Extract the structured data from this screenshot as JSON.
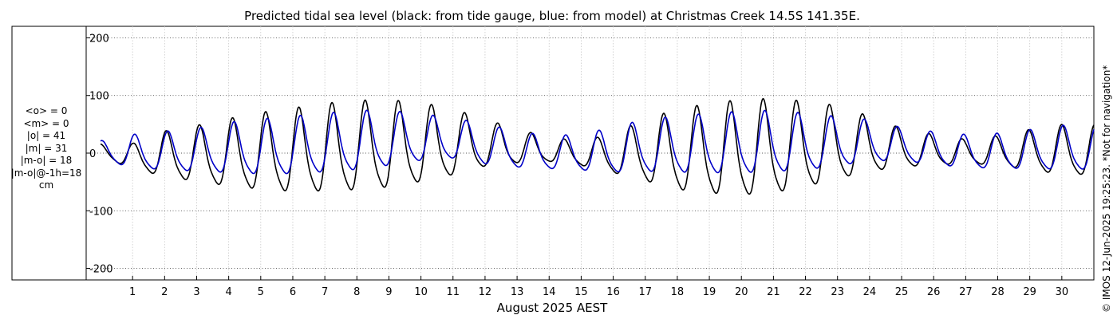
{
  "chart_data": {
    "type": "line",
    "title": "Predicted tidal sea level (black: from tide gauge, blue: from model) at Christmas Creek 14.5S 141.35E.",
    "xlabel": "August 2025 AEST",
    "ylabel": "",
    "xlim": [
      0,
      31
    ],
    "ylim": [
      -220,
      220
    ],
    "yticks": [
      -200,
      -100,
      0,
      100,
      200
    ],
    "ytick_labels": [
      "-200",
      "-100",
      "0",
      "100",
      "200"
    ],
    "xticks": [
      1,
      2,
      3,
      4,
      5,
      6,
      7,
      8,
      9,
      10,
      11,
      12,
      13,
      14,
      15,
      16,
      17,
      18,
      19,
      20,
      21,
      22,
      23,
      24,
      25,
      26,
      27,
      28,
      29,
      30
    ],
    "xtick_labels": [
      "1",
      "2",
      "3",
      "4",
      "5",
      "6",
      "7",
      "8",
      "9",
      "10",
      "11",
      "12",
      "13",
      "14",
      "15",
      "16",
      "17",
      "18",
      "19",
      "20",
      "21",
      "22",
      "23",
      "24",
      "25",
      "26",
      "27",
      "28",
      "29",
      "30"
    ],
    "grid": true,
    "series": [
      {
        "name": "tide gauge",
        "color": "#000000",
        "day_peaks": [
          15,
          15,
          35,
          44,
          55,
          65,
          72,
          80,
          85,
          86,
          82,
          72,
          55,
          40,
          25,
          20,
          30,
          55,
          70,
          80,
          86,
          88,
          84,
          77,
          60,
          40,
          30,
          22,
          28,
          38,
          46
        ],
        "day_troughs": [
          -8,
          -30,
          -48,
          -58,
          -68,
          -75,
          -80,
          -80,
          -78,
          -73,
          -62,
          -48,
          -30,
          -22,
          -18,
          -25,
          -40,
          -58,
          -76,
          -84,
          -88,
          -84,
          -72,
          -56,
          -40,
          -30,
          -25,
          -22,
          -25,
          -35,
          -45
        ]
      },
      {
        "name": "model",
        "color": "#0000c8",
        "day_peaks": [
          20,
          30,
          35,
          40,
          50,
          55,
          60,
          65,
          70,
          70,
          65,
          58,
          48,
          35,
          28,
          30,
          42,
          55,
          60,
          65,
          68,
          70,
          65,
          60,
          55,
          42,
          35,
          30,
          32,
          38,
          45
        ],
        "day_troughs": [
          -15,
          -30,
          -35,
          -38,
          -42,
          -45,
          -45,
          -42,
          -38,
          -30,
          -20,
          -15,
          -25,
          -30,
          -32,
          -35,
          -40,
          -40,
          -42,
          -44,
          -44,
          -42,
          -38,
          -30,
          -20,
          -18,
          -25,
          -30,
          -32,
          -33,
          -35
        ]
      }
    ]
  },
  "stats": {
    "mean_obs": "<o> = 0",
    "mean_model": "<m> = 0",
    "abs_obs": "|o| = 41",
    "abs_model": "|m| = 31",
    "abs_diff": "|m-o| = 18",
    "abs_diff_lag": "|m-o|@-1h=18",
    "unit": "cm"
  },
  "credit": "© IMOS 12-Jun-2025 19:25:23. *Not for navigation*"
}
